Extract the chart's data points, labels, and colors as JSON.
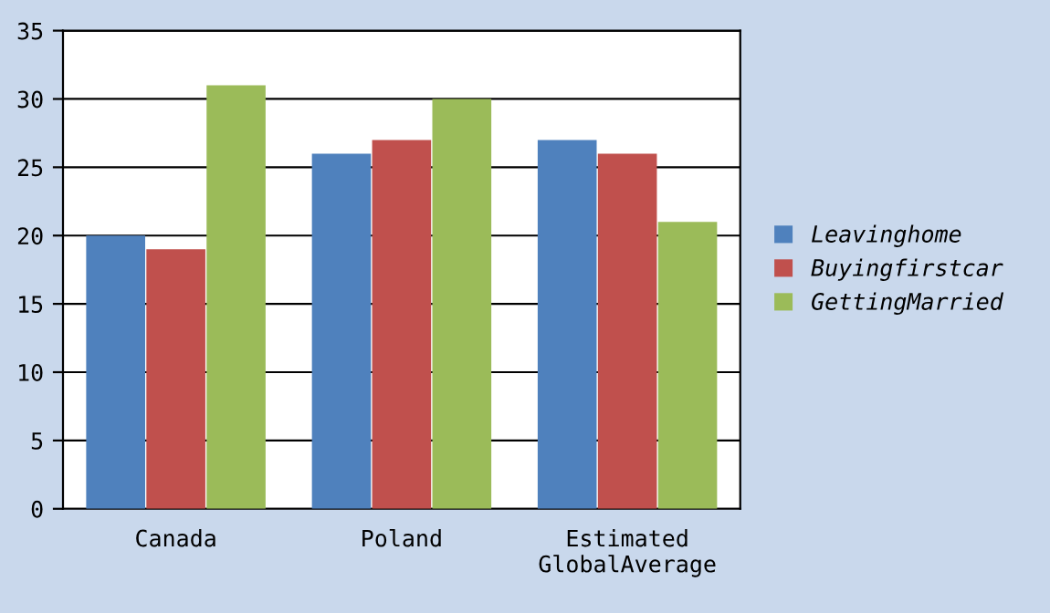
{
  "chart_data": {
    "type": "bar",
    "categories": [
      "Canada",
      "Poland",
      "Estimated\nGlobalAverage"
    ],
    "series": [
      {
        "name": "Leavinghome",
        "color": "#4f81bd",
        "values": [
          20,
          26,
          27
        ]
      },
      {
        "name": "Buyingfirstcar",
        "color": "#c0504d",
        "values": [
          19,
          27,
          26
        ]
      },
      {
        "name": "GettingMarried",
        "color": "#9bbb59",
        "values": [
          31,
          30,
          21
        ]
      }
    ],
    "ylim": [
      0,
      35
    ],
    "yticks": [
      0,
      5,
      10,
      15,
      20,
      25,
      30,
      35
    ],
    "grid": "y",
    "legend": "right"
  }
}
